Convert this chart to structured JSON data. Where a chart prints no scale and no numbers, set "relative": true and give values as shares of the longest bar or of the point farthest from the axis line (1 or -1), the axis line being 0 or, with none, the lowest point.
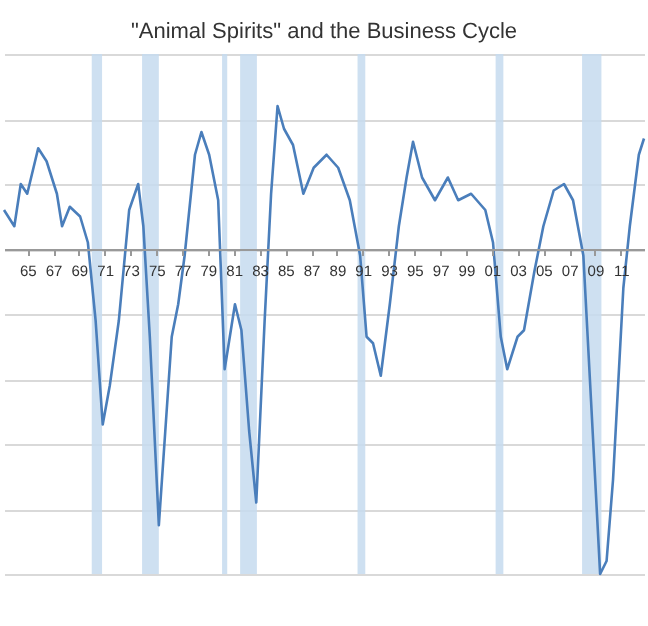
{
  "chart_data": {
    "type": "line",
    "title": "\"Animal Spirits\" and the Business Cycle",
    "relative": true,
    "grid": "y",
    "x": [
      1963.2,
      1964.0,
      1964.5,
      1965.0,
      1965.85,
      1966.5,
      1967.3,
      1967.7,
      1968.3,
      1969.1,
      1969.7,
      1970.3,
      1970.85,
      1971.4,
      1972.1,
      1972.9,
      1973.6,
      1974.0,
      1974.5,
      1975.2,
      1975.7,
      1976.2,
      1976.7,
      1977.2,
      1978.0,
      1978.5,
      1979.1,
      1979.8,
      1980.3,
      1981.1,
      1981.6,
      1982.2,
      1982.75,
      1983.4,
      1983.9,
      1984.4,
      1984.9,
      1985.6,
      1986.4,
      1987.2,
      1988.2,
      1989.1,
      1990.0,
      1990.8,
      1991.3,
      1991.8,
      1992.4,
      1993.1,
      1993.8,
      1994.4,
      1994.9,
      1995.6,
      1996.6,
      1997.6,
      1998.4,
      1999.4,
      2000.5,
      2001.1,
      2001.7,
      2002.2,
      2003.0,
      2003.5,
      2004.3,
      2005.0,
      2005.8,
      2006.6,
      2007.3,
      2008.1,
      2008.7,
      2009.4,
      2009.9,
      2010.4,
      2011.2,
      2011.7,
      2012.4,
      2012.8
    ],
    "series": [
      {
        "color": "#4a7ebb",
        "values": [
          0.12,
          0.07,
          0.2,
          0.17,
          0.31,
          0.27,
          0.17,
          0.07,
          0.13,
          0.1,
          0.02,
          -0.22,
          -0.54,
          -0.42,
          -0.22,
          0.12,
          0.2,
          0.07,
          -0.27,
          -0.85,
          -0.56,
          -0.27,
          -0.17,
          -0.02,
          0.29,
          0.36,
          0.29,
          0.15,
          -0.37,
          -0.17,
          -0.25,
          -0.56,
          -0.78,
          -0.22,
          0.17,
          0.44,
          0.37,
          0.32,
          0.17,
          0.25,
          0.29,
          0.25,
          0.15,
          -0.02,
          -0.27,
          -0.29,
          -0.39,
          -0.17,
          0.07,
          0.22,
          0.33,
          0.22,
          0.15,
          0.22,
          0.15,
          0.17,
          0.12,
          0.02,
          -0.27,
          -0.37,
          -0.27,
          -0.25,
          -0.07,
          0.07,
          0.18,
          0.2,
          0.15,
          -0.02,
          -0.47,
          -1.0,
          -0.96,
          -0.71,
          -0.12,
          0.07,
          0.29,
          0.34
        ]
      }
    ],
    "xlim": [
      1963.2,
      2012.8
    ],
    "xticks": [
      {
        "value": 1965,
        "label": "65"
      },
      {
        "value": 1967,
        "label": "67"
      },
      {
        "value": 1969,
        "label": "69"
      },
      {
        "value": 1971,
        "label": "71"
      },
      {
        "value": 1973,
        "label": "73"
      },
      {
        "value": 1975,
        "label": "75"
      },
      {
        "value": 1977,
        "label": "77"
      },
      {
        "value": 1979,
        "label": "79"
      },
      {
        "value": 1981,
        "label": "81"
      },
      {
        "value": 1983,
        "label": "83"
      },
      {
        "value": 1985,
        "label": "85"
      },
      {
        "value": 1987,
        "label": "87"
      },
      {
        "value": 1989,
        "label": "89"
      },
      {
        "value": 1991,
        "label": "91"
      },
      {
        "value": 1993,
        "label": "93"
      },
      {
        "value": 1995,
        "label": "95"
      },
      {
        "value": 1997,
        "label": "97"
      },
      {
        "value": 1999,
        "label": "99"
      },
      {
        "value": 2001,
        "label": "01"
      },
      {
        "value": 2003,
        "label": "03"
      },
      {
        "value": 2005,
        "label": "05"
      },
      {
        "value": 2007,
        "label": "07"
      },
      {
        "value": 2009,
        "label": "09"
      },
      {
        "value": 2011,
        "label": "11"
      }
    ],
    "bands": [
      {
        "axis": "x",
        "from": 1970.0,
        "to": 1970.8,
        "color": "#c6dbef"
      },
      {
        "axis": "x",
        "from": 1973.9,
        "to": 1975.2,
        "color": "#c6dbef"
      },
      {
        "axis": "x",
        "from": 1980.1,
        "to": 1980.5,
        "color": "#c6dbef"
      },
      {
        "axis": "x",
        "from": 1981.5,
        "to": 1982.8,
        "color": "#c6dbef"
      },
      {
        "axis": "x",
        "from": 1990.6,
        "to": 1991.2,
        "color": "#c6dbef"
      },
      {
        "axis": "x",
        "from": 2001.3,
        "to": 2001.9,
        "color": "#c6dbef"
      },
      {
        "axis": "x",
        "from": 2008.0,
        "to": 2009.5,
        "color": "#c6dbef"
      }
    ]
  }
}
